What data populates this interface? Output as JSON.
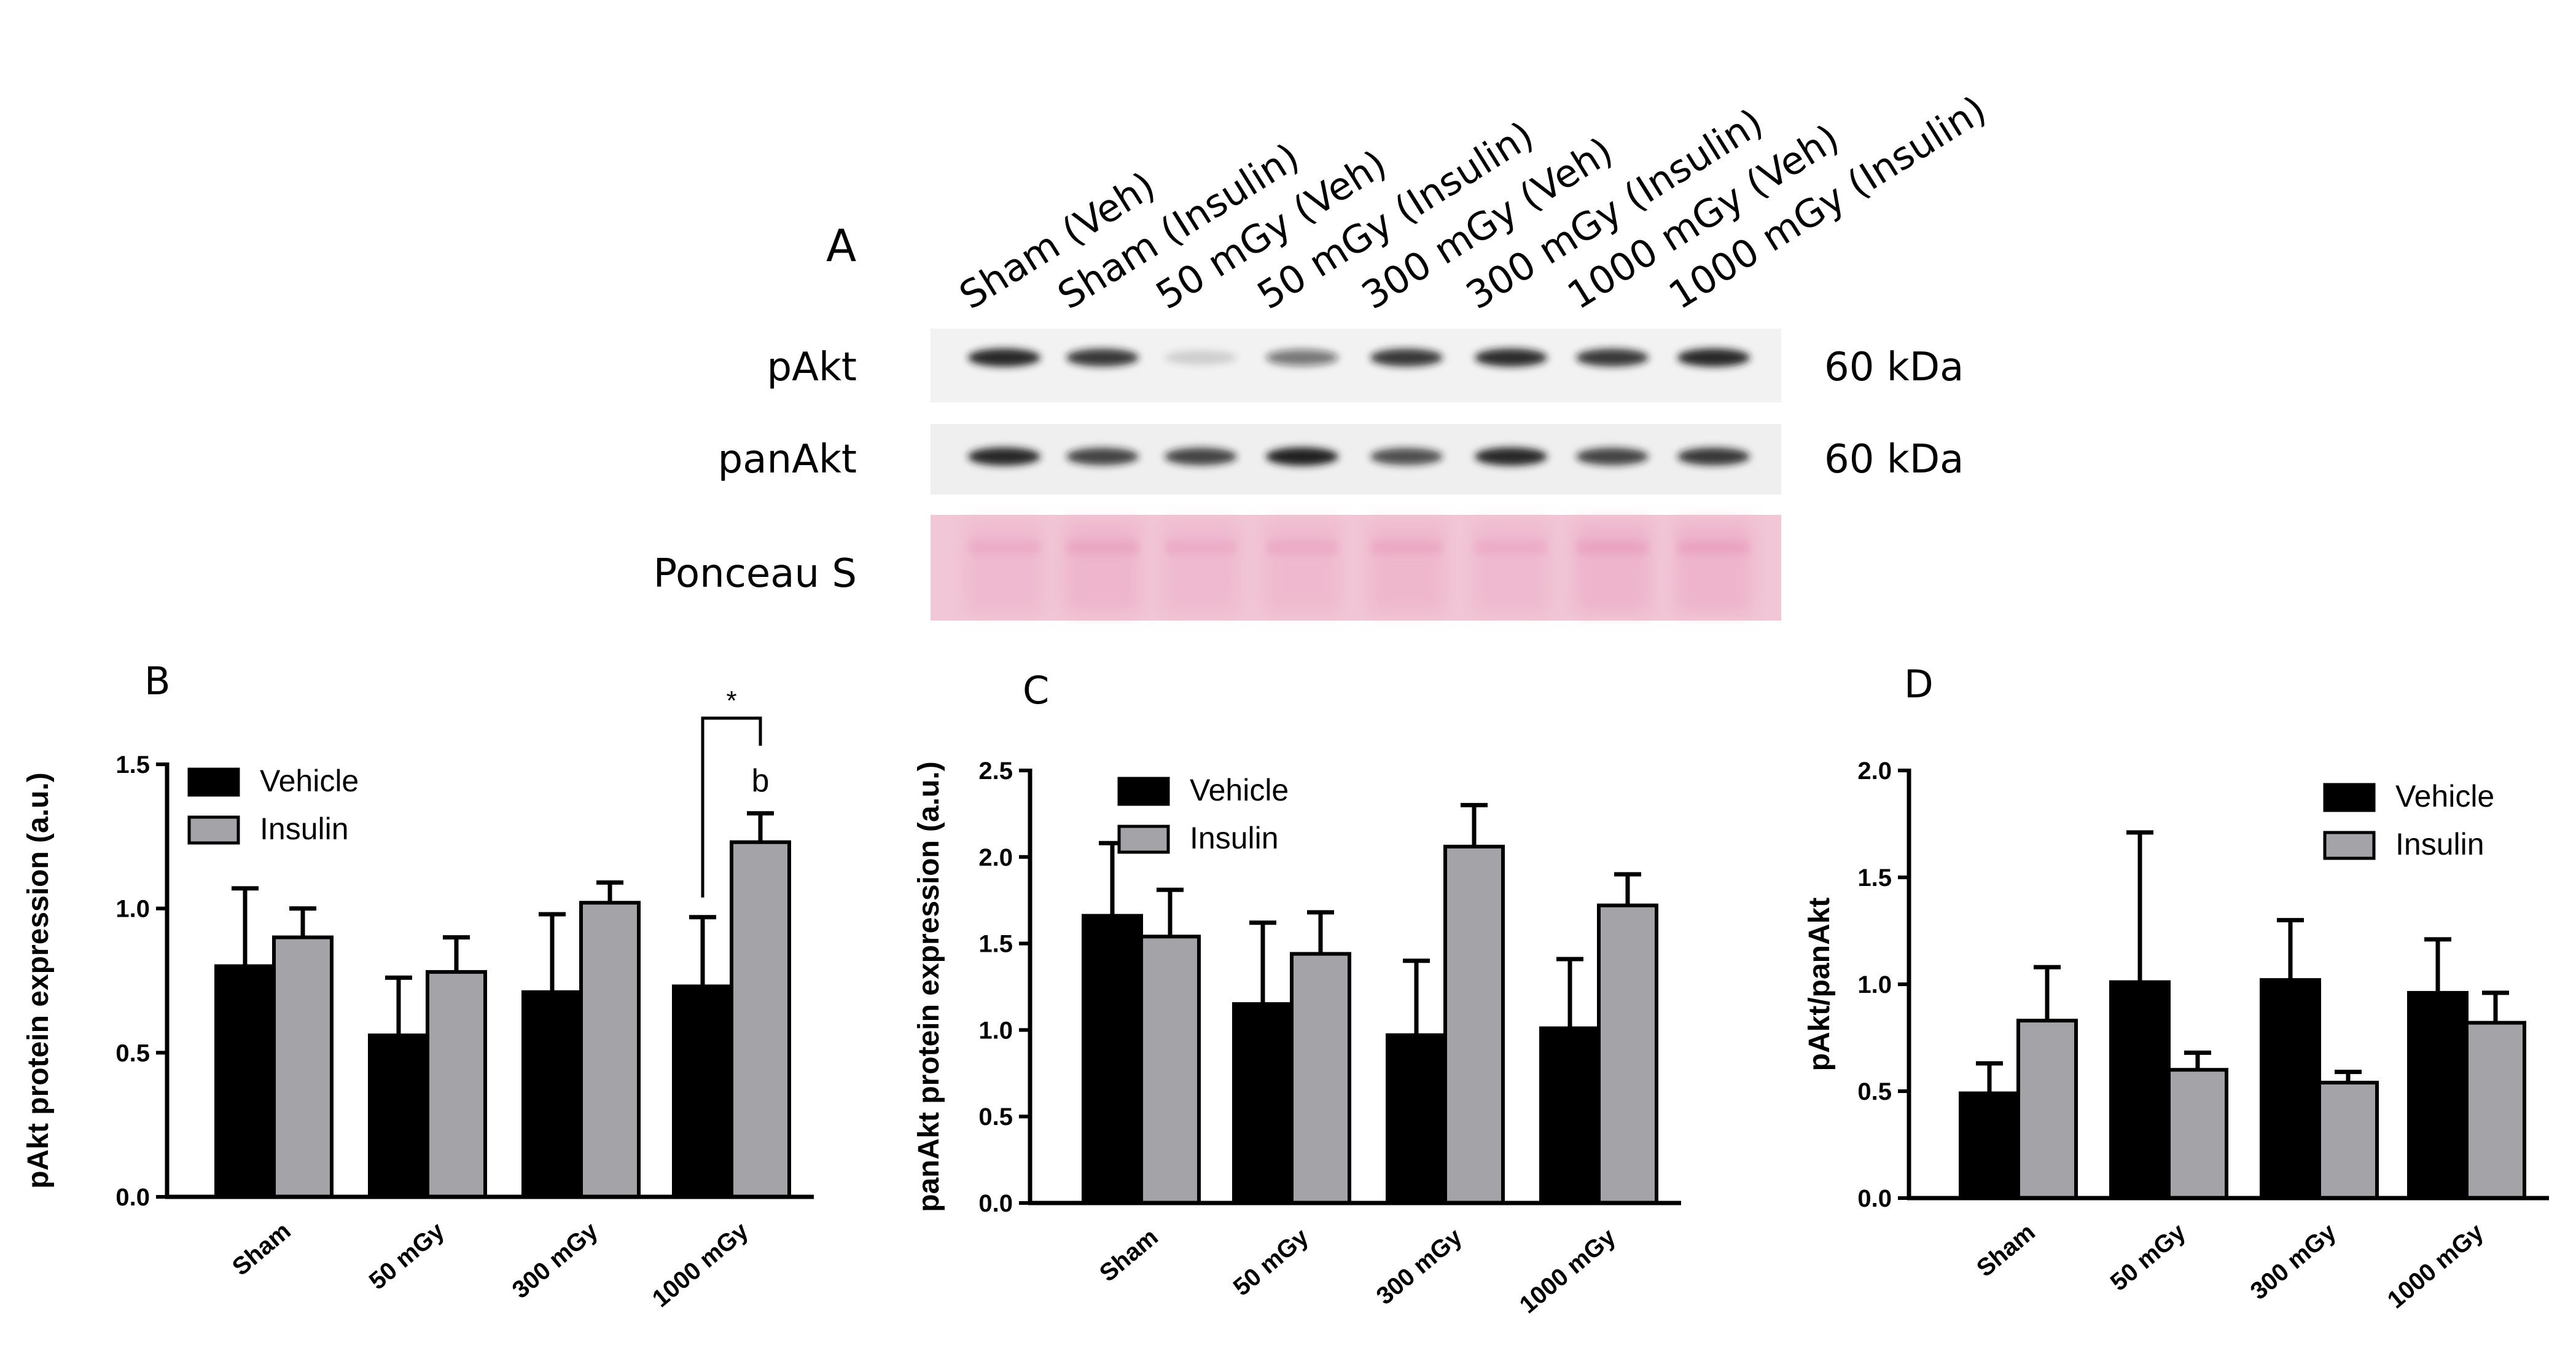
{
  "colors": {
    "vehicle": "#000000",
    "insulin": "#a3a3a8",
    "band": "#1a1a1a",
    "ponceau_bg": "#f1c6d6",
    "ponceau_band": "#ea9fbf"
  },
  "blot": {
    "panel_letter": "A",
    "lanes": [
      "Sham (Veh)",
      "Sham (Insulin)",
      "50 mGy (Veh)",
      "50 mGy (Insulin)",
      "300 mGy (Veh)",
      "300 mGy (Insulin)",
      "1000 mGy (Veh)",
      "1000 mGy (Insulin)"
    ],
    "rows": [
      {
        "label": "pAkt",
        "size": "60 kDa",
        "intensity": [
          0.95,
          0.85,
          0.15,
          0.55,
          0.85,
          0.9,
          0.85,
          0.95
        ]
      },
      {
        "label": "panAkt",
        "size": "60 kDa",
        "intensity": [
          0.95,
          0.8,
          0.8,
          0.98,
          0.75,
          0.95,
          0.8,
          0.85
        ]
      },
      {
        "label": "Ponceau S",
        "size": "",
        "intensity": [
          0.6,
          0.8,
          0.6,
          0.65,
          0.7,
          0.6,
          0.85,
          0.85
        ]
      }
    ]
  },
  "chart_data": [
    {
      "type": "bar",
      "panel_letter": "B",
      "categories": [
        "Sham",
        "50 mGy",
        "300 mGy",
        "1000 mGy"
      ],
      "series": [
        {
          "name": "Vehicle",
          "values": [
            0.8,
            0.56,
            0.71,
            0.73
          ],
          "errors": [
            0.27,
            0.2,
            0.27,
            0.24
          ]
        },
        {
          "name": "Insulin",
          "values": [
            0.9,
            0.78,
            1.02,
            1.23
          ],
          "errors": [
            0.1,
            0.12,
            0.07,
            0.1
          ]
        }
      ],
      "ylabel": "pAkt protein expression (a.u.)",
      "xlabel": "",
      "ylim": [
        0,
        1.5
      ],
      "yticks": [
        0,
        0.5,
        1.0,
        1.5
      ],
      "ytick_labels": [
        "0.0",
        "0.5",
        "1.0",
        "1.5"
      ],
      "legend": [
        "Vehicle",
        "Insulin"
      ],
      "legend_position": "top-left",
      "annotations": {
        "bracket": "*",
        "letter": "b"
      }
    },
    {
      "type": "bar",
      "panel_letter": "C",
      "categories": [
        "Sham",
        "50 mGy",
        "300 mGy",
        "1000 mGy"
      ],
      "series": [
        {
          "name": "Vehicle",
          "values": [
            1.66,
            1.15,
            0.97,
            1.01
          ],
          "errors": [
            0.42,
            0.47,
            0.43,
            0.4
          ]
        },
        {
          "name": "Insulin",
          "values": [
            1.54,
            1.44,
            2.06,
            1.72
          ],
          "errors": [
            0.27,
            0.24,
            0.24,
            0.18
          ]
        }
      ],
      "ylabel": "panAkt protein expression (a.u.)",
      "xlabel": "",
      "ylim": [
        0,
        2.5
      ],
      "yticks": [
        0,
        0.5,
        1.0,
        1.5,
        2.0,
        2.5
      ],
      "ytick_labels": [
        "0.0",
        "0.5",
        "1.0",
        "1.5",
        "2.0",
        "2.5"
      ],
      "legend": [
        "Vehicle",
        "Insulin"
      ],
      "legend_position": "top-left"
    },
    {
      "type": "bar",
      "panel_letter": "D",
      "categories": [
        "Sham",
        "50 mGy",
        "300 mGy",
        "1000 mGy"
      ],
      "series": [
        {
          "name": "Vehicle",
          "values": [
            0.49,
            1.01,
            1.02,
            0.96
          ],
          "errors": [
            0.14,
            0.7,
            0.28,
            0.25
          ]
        },
        {
          "name": "Insulin",
          "values": [
            0.83,
            0.6,
            0.54,
            0.82
          ],
          "errors": [
            0.25,
            0.08,
            0.05,
            0.14
          ]
        }
      ],
      "ylabel": "pAkt/panAkt",
      "xlabel": "",
      "ylim": [
        0,
        2.0
      ],
      "yticks": [
        0,
        0.5,
        1.0,
        1.5,
        2.0
      ],
      "ytick_labels": [
        "0.0",
        "0.5",
        "1.0",
        "1.5",
        "2.0"
      ],
      "legend": [
        "Vehicle",
        "Insulin"
      ],
      "legend_position": "top-right"
    }
  ]
}
